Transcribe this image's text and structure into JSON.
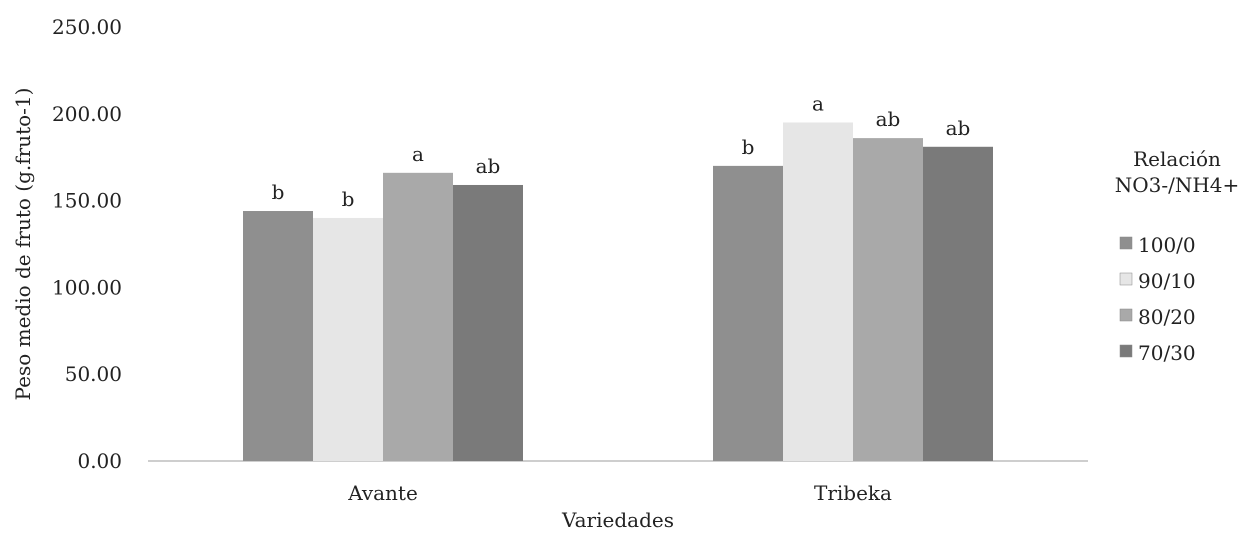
{
  "chart_data": {
    "type": "bar",
    "categories": [
      "Avante",
      "Tribeka"
    ],
    "series": [
      {
        "name": "100/0",
        "values": [
          144,
          170
        ],
        "labels": [
          "b",
          "b"
        ],
        "color": "#8f8f8f"
      },
      {
        "name": "90/10",
        "values": [
          140,
          195
        ],
        "labels": [
          "b",
          "a"
        ],
        "color": "#e6e6e6"
      },
      {
        "name": "80/20",
        "values": [
          166,
          186
        ],
        "labels": [
          "a",
          "ab"
        ],
        "color": "#a9a9a9"
      },
      {
        "name": "70/30",
        "values": [
          159,
          181
        ],
        "labels": [
          "ab",
          "ab"
        ],
        "color": "#7a7a7a"
      }
    ],
    "xlabel": "Variedades",
    "ylabel": "Peso medio de fruto (g.fruto-1)",
    "ylim": [
      0,
      250
    ],
    "yticks": [
      "0.00",
      "50.00",
      "100.00",
      "150.00",
      "200.00",
      "250.00"
    ],
    "grid": false,
    "legend": {
      "title_line1": "Relación",
      "title_line2": "NO3-/NH4+",
      "placement": "right"
    }
  }
}
